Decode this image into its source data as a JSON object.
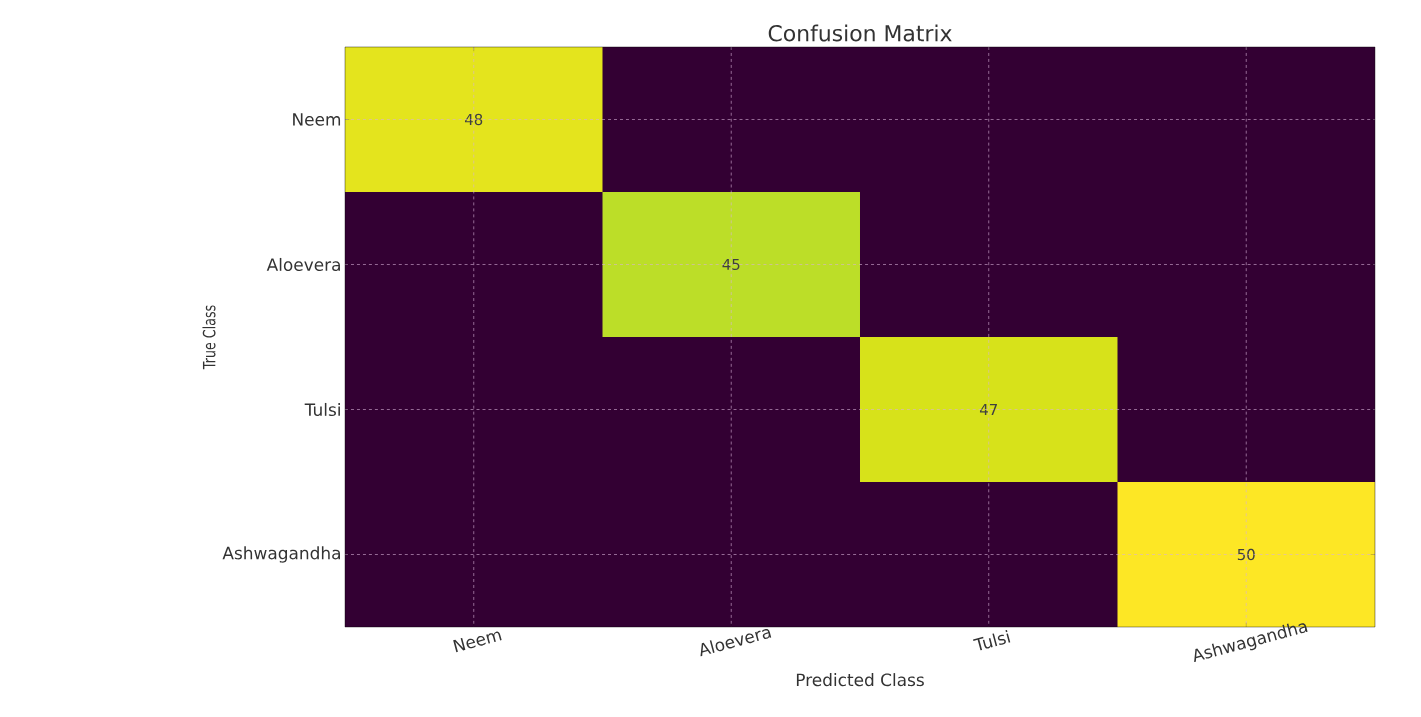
{
  "chart_data": {
    "type": "heatmap",
    "title": "Confusion Matrix",
    "xlabel": "Predicted Class",
    "ylabel": "True Class",
    "categories": [
      "Neem",
      "Aloevera",
      "Tulsi",
      "Ashwagandha"
    ],
    "y_categories": [
      "Neem",
      "Aloevera",
      "Tulsi",
      "Ashwagandha"
    ],
    "cells": [
      [
        48,
        null,
        null,
        null
      ],
      [
        null,
        45,
        null,
        null
      ],
      [
        null,
        null,
        47,
        null
      ],
      [
        null,
        null,
        null,
        50
      ]
    ],
    "cell_labels": [
      [
        "48",
        null,
        null,
        null
      ],
      [
        null,
        "45",
        null,
        null
      ],
      [
        null,
        null,
        "47",
        null
      ],
      [
        null,
        null,
        null,
        "50"
      ]
    ],
    "grid": true
  }
}
